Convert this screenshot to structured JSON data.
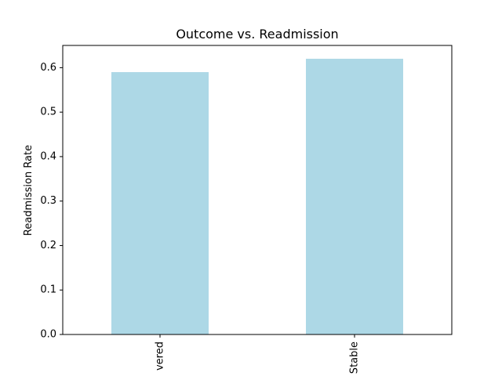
{
  "chart_data": {
    "type": "bar",
    "title": "Outcome vs. Readmission",
    "xlabel": "",
    "ylabel": "Readmission Rate",
    "categories": [
      "vered",
      "Stable"
    ],
    "values": [
      0.59,
      0.62
    ],
    "ylim": [
      0,
      0.65
    ],
    "yticks": [
      0.0,
      0.1,
      0.2,
      0.3,
      0.4,
      0.5,
      0.6
    ],
    "ytick_labels": [
      "0.0",
      "0.1",
      "0.2",
      "0.3",
      "0.4",
      "0.5",
      "0.6"
    ],
    "bar_color": "#add8e6",
    "grid": false,
    "legend": "none"
  }
}
